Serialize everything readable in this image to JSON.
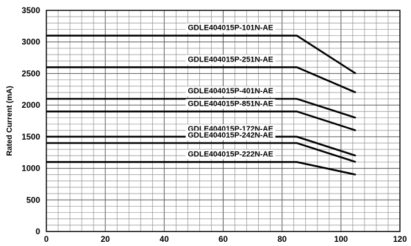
{
  "chart_data": {
    "type": "line",
    "title": "",
    "xlabel": "",
    "ylabel": "Rated Current (mA)",
    "xlim": [
      0,
      120
    ],
    "ylim": [
      0,
      3500
    ],
    "x_ticks": [
      0,
      20,
      40,
      60,
      80,
      100,
      120
    ],
    "y_ticks": [
      0,
      500,
      1000,
      1500,
      2000,
      2500,
      3000,
      3500
    ],
    "grid": true,
    "x_minor_step": 4,
    "y_minor_step": 100,
    "series": [
      {
        "name": "GDLE404015P-101N-AE",
        "x": [
          0,
          85,
          105
        ],
        "values": [
          3100,
          3100,
          2500
        ]
      },
      {
        "name": "GDLE404015P-251N-AE",
        "x": [
          0,
          85,
          105
        ],
        "values": [
          2600,
          2600,
          2200
        ]
      },
      {
        "name": "GDLE404015P-401N-AE",
        "x": [
          0,
          85,
          105
        ],
        "values": [
          2100,
          2100,
          1800
        ]
      },
      {
        "name": "GDLE404015P-851N-AE",
        "x": [
          0,
          85,
          105
        ],
        "values": [
          1900,
          1900,
          1600
        ]
      },
      {
        "name": "GDLE404015P-172N-AE",
        "x": [
          0,
          85,
          105
        ],
        "values": [
          1500,
          1500,
          1200
        ]
      },
      {
        "name": "GDLE404015P-242N-AE",
        "x": [
          0,
          85,
          105
        ],
        "values": [
          1400,
          1400,
          1100
        ]
      },
      {
        "name": "GDLE404015P-222N-AE",
        "x": [
          0,
          85,
          105
        ],
        "values": [
          1100,
          1100,
          900
        ]
      }
    ],
    "line_color": "#000000"
  }
}
